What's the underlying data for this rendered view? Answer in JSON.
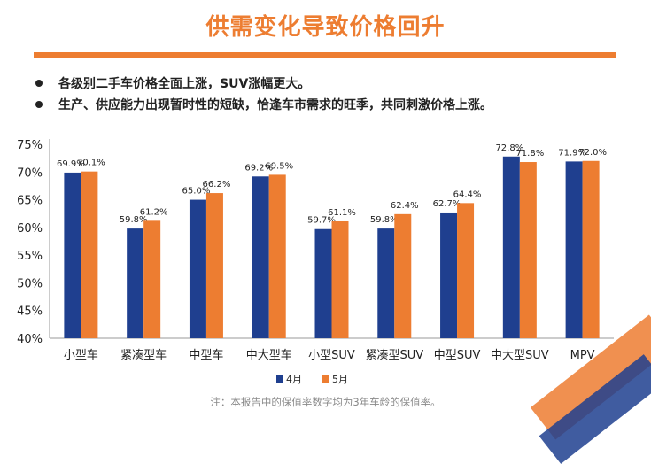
{
  "title": "供需变化导致价格回升",
  "bullets": [
    "各级别二手车价格全面上涨，SUV涨幅更大。",
    "生产、供应能力出现暂时性的短缺，恰逢车市需求的旺季，共同刺激价格上涨。"
  ],
  "note": "注：本报告中的保值率数字均为3年车龄的保值率。",
  "colors": {
    "accent": "#ED7D31",
    "april": "#1F3F8F",
    "may": "#ED7D31"
  },
  "chart_data": {
    "type": "bar",
    "categories": [
      "小型车",
      "紧凑型车",
      "中型车",
      "中大型车",
      "小型SUV",
      "紧凑型SUV",
      "中型SUV",
      "中大型SUV",
      "MPV"
    ],
    "series": [
      {
        "name": "4月",
        "values": [
          69.9,
          59.8,
          65.0,
          69.2,
          59.7,
          59.8,
          62.7,
          72.8,
          71.9
        ],
        "labels": [
          "69.9%",
          "59.8%",
          "65.0%",
          "69.2%",
          "59.7%",
          "59.8%",
          "62.7%",
          "72.8%",
          "71.9%"
        ],
        "color": "#1F3F8F"
      },
      {
        "name": "5月",
        "values": [
          70.1,
          61.2,
          66.2,
          69.5,
          61.1,
          62.4,
          64.4,
          71.8,
          72.0
        ],
        "labels": [
          "70.1%",
          "61.2%",
          "66.2%",
          "69.5%",
          "61.1%",
          "62.4%",
          "64.4%",
          "71.8%",
          "72.0%"
        ],
        "color": "#ED7D31"
      }
    ],
    "yticks": [
      "40%",
      "45%",
      "50%",
      "55%",
      "60%",
      "65%",
      "70%",
      "75%"
    ],
    "ylim": [
      40,
      75
    ],
    "legend_position": "bottom",
    "grid": false
  }
}
